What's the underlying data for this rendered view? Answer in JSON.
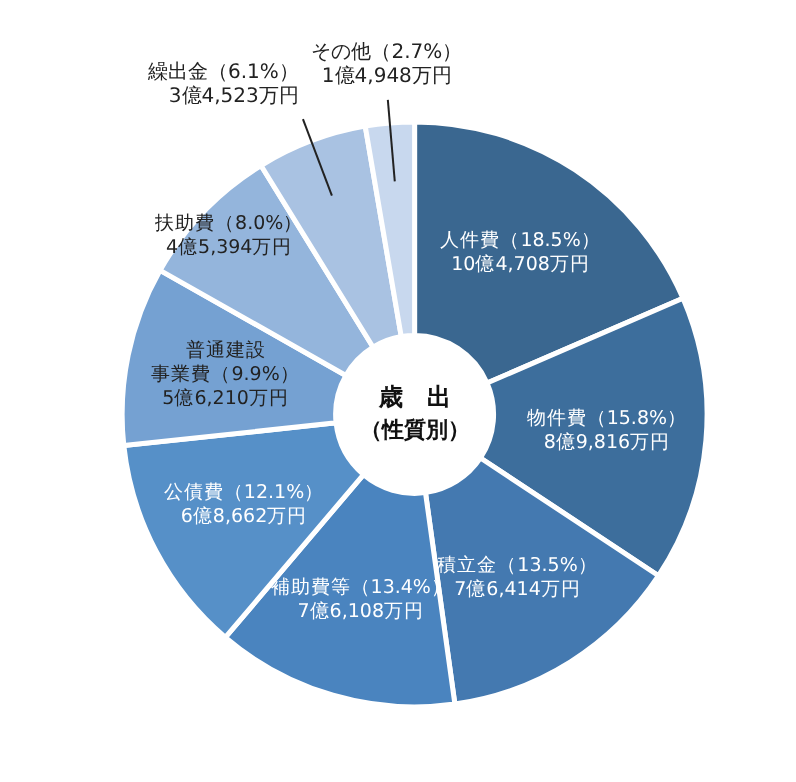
{
  "chart_data": {
    "type": "donut",
    "title": "歳　出",
    "subtitle": "（性質別）",
    "categories": [
      "人件費",
      "物件費",
      "積立金",
      "補助費等",
      "公債費",
      "普通建設事業費",
      "扶助費",
      "繰出金",
      "その他"
    ],
    "values": [
      18.5,
      15.8,
      13.5,
      13.4,
      12.1,
      9.9,
      8.0,
      6.1,
      2.7
    ],
    "value_labels": [
      "（18.5%）\n10億4,708万円",
      "（15.8%）\n8億9,816万円",
      "（13.5%）\n7億6,414万円",
      "（13.4%）\n7億6,108万円",
      "（12.1%）\n6億8,662万円",
      "（9.9%）\n5億6,210万円",
      "（8.0%）\n4億5,394万円",
      "（6.1%）\n3億4,523万円",
      "（2.7%）\n1億4,948万円"
    ],
    "colors": [
      "#3a6790",
      "#3d6e9c",
      "#4479b0",
      "#4a84bf",
      "#5690c8",
      "#75a1d2",
      "#94b5dc",
      "#a9c2e2",
      "#c8d8ee"
    ]
  }
}
